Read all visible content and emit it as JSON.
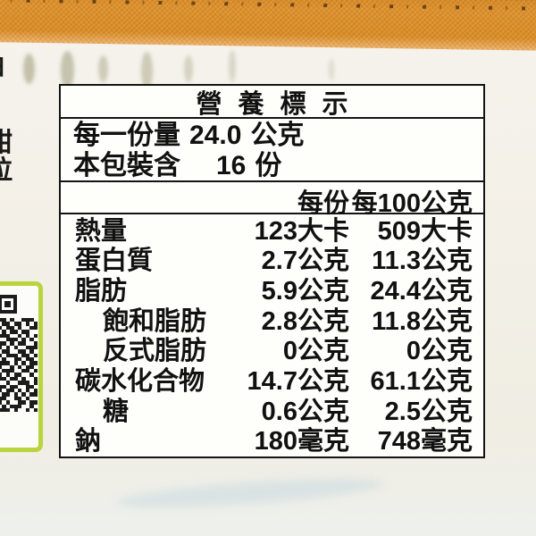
{
  "package": {
    "left_edge_clipped_chars": [
      "油",
      "甜",
      "拉"
    ],
    "colors": {
      "band_orange": "#d98a22",
      "qr_border_green": "#b9d43e",
      "background_cream": "#f3f0e7",
      "table_ink": "#141414"
    }
  },
  "qr": {
    "name": "qr-code",
    "rows": [
      "1101001110",
      "0110110101",
      "1011010011",
      "0101101100",
      "1110010101",
      "0011101010",
      "1101011001",
      "1010100111",
      "0110011010",
      "1011101101",
      "0100110110",
      "1110101011",
      "1001010110",
      "0111001101",
      "1010110010",
      "1101101001",
      "0010011101",
      "1101100110",
      "1011010101",
      "0110101011",
      "1100110100",
      "1010011011",
      "0101110010",
      "1110100101"
    ]
  },
  "nutrition_label": {
    "title": "營養標示",
    "serving": {
      "size_label": "每一份量",
      "size_value": "24.0",
      "size_unit": "公克",
      "count_label": "本包裝含",
      "count_value": "16",
      "count_unit": "份"
    },
    "columns": {
      "per_serving": "每份",
      "per_100g": "每100公克"
    },
    "rows": [
      {
        "label": "熱量",
        "indent": false,
        "per_serving": "123大卡",
        "per_100g": "509大卡"
      },
      {
        "label": "蛋白質",
        "indent": false,
        "per_serving": "2.7公克",
        "per_100g": "11.3公克"
      },
      {
        "label": "脂肪",
        "indent": false,
        "per_serving": "5.9公克",
        "per_100g": "24.4公克"
      },
      {
        "label": "飽和脂肪",
        "indent": true,
        "per_serving": "2.8公克",
        "per_100g": "11.8公克"
      },
      {
        "label": "反式脂肪",
        "indent": true,
        "per_serving": "0公克",
        "per_100g": "0公克"
      },
      {
        "label": "碳水化合物",
        "indent": false,
        "per_serving": "14.7公克",
        "per_100g": "61.1公克"
      },
      {
        "label": "糖",
        "indent": true,
        "per_serving": "0.6公克",
        "per_100g": "2.5公克"
      },
      {
        "label": "鈉",
        "indent": false,
        "per_serving": "180毫克",
        "per_100g": "748毫克"
      }
    ]
  }
}
